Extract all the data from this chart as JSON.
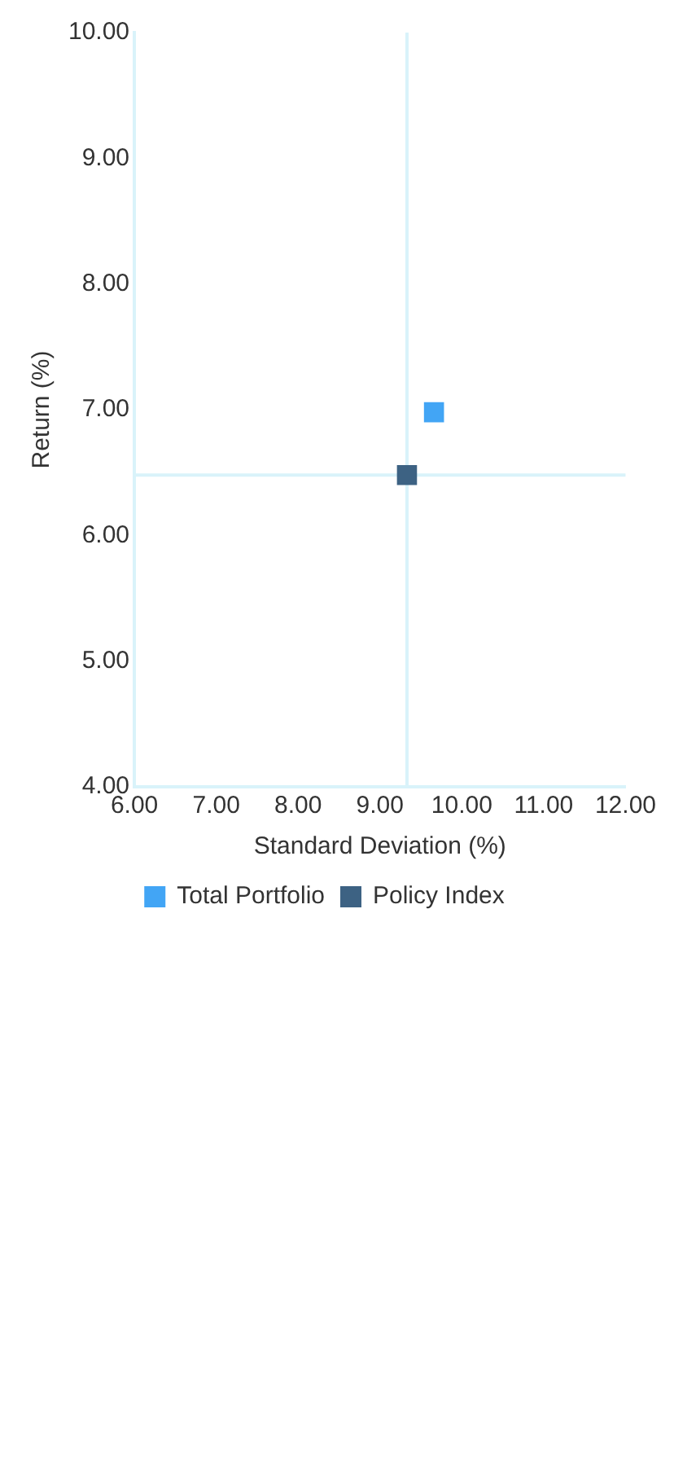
{
  "chart_data": {
    "type": "scatter",
    "xlabel": "Standard Deviation (%)",
    "ylabel": "Return (%)",
    "series": [
      {
        "name": "Total Portfolio",
        "color": "#42a5f5",
        "x": [
          9.66
        ],
        "values": [
          6.98
        ]
      },
      {
        "name": "Policy Index",
        "color": "#3d6283",
        "x": [
          9.33
        ],
        "values": [
          6.48
        ]
      }
    ],
    "xlim": [
      6,
      12
    ],
    "xticks": [
      {
        "value": 6,
        "label": "6.00"
      },
      {
        "value": 7,
        "label": "7.00"
      },
      {
        "value": 8,
        "label": "8.00"
      },
      {
        "value": 9,
        "label": "9.00"
      },
      {
        "value": 10,
        "label": "10.00"
      },
      {
        "value": 11,
        "label": "11.00"
      },
      {
        "value": 12,
        "label": "12.00"
      }
    ],
    "ylim": [
      4,
      10
    ],
    "yticks": [
      {
        "value": 4,
        "label": "4.00"
      },
      {
        "value": 5,
        "label": "5.00"
      },
      {
        "value": 6,
        "label": "6.00"
      },
      {
        "value": 7,
        "label": "7.00"
      },
      {
        "value": 8,
        "label": "8.00"
      },
      {
        "value": 9,
        "label": "9.00"
      },
      {
        "value": 10,
        "label": "10.00"
      }
    ],
    "ref_lines": [
      {
        "axis": "x",
        "value": 9.33,
        "color": "#d9f3fa"
      },
      {
        "axis": "y",
        "value": 6.48,
        "color": "#d9f3fa"
      }
    ],
    "marker": "square",
    "grid": false,
    "legend": "bottom"
  }
}
